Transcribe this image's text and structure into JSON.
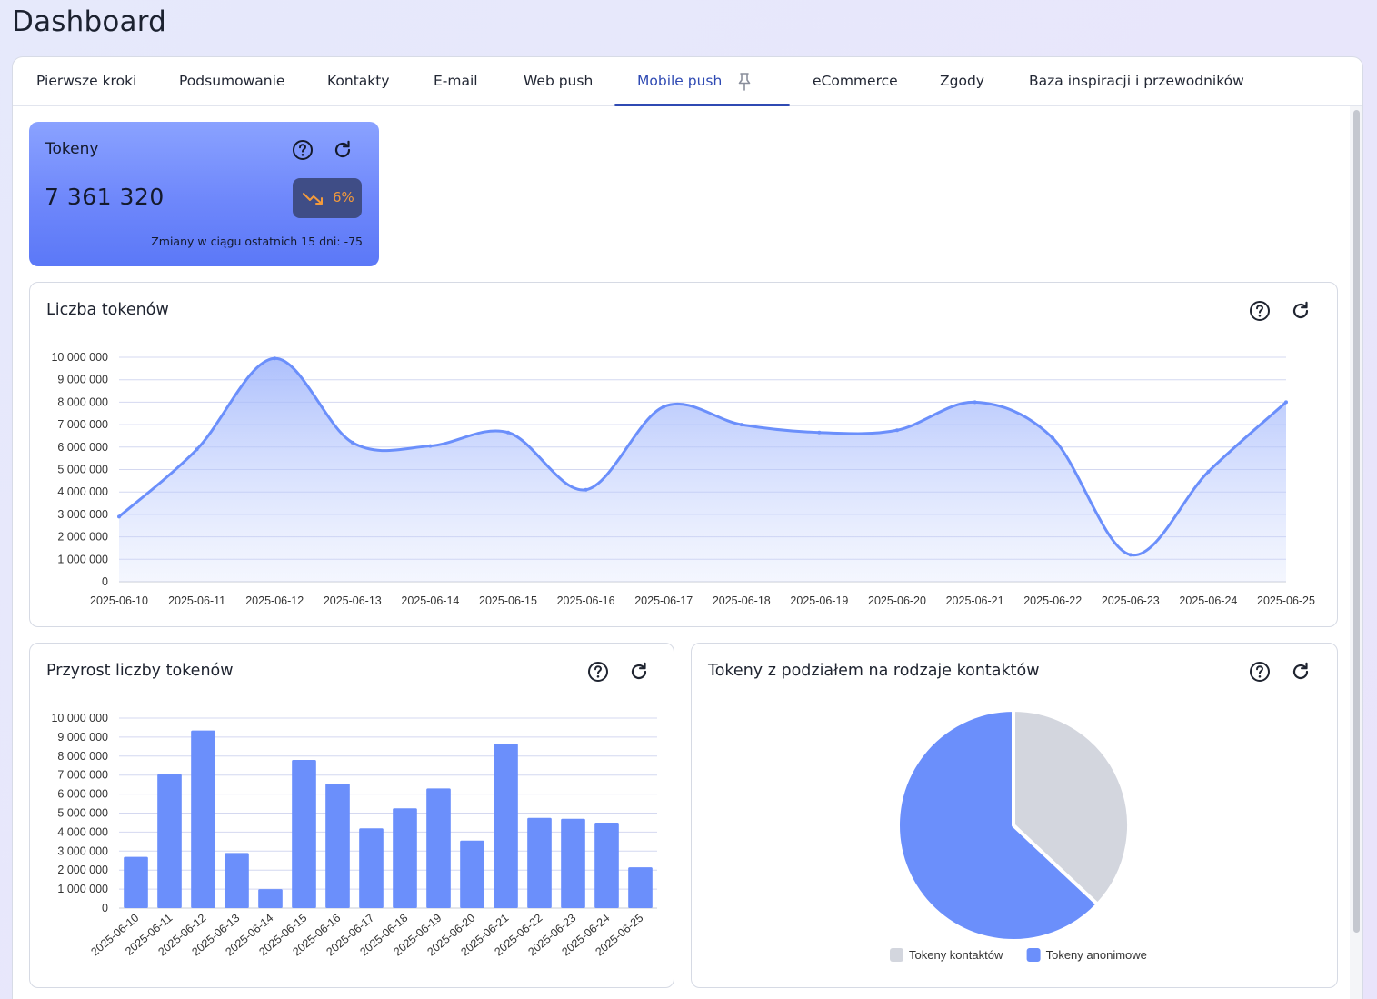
{
  "page": {
    "title": "Dashboard"
  },
  "tabs": [
    {
      "label": "Pierwsze kroki",
      "active": false
    },
    {
      "label": "Podsumowanie",
      "active": false
    },
    {
      "label": "Kontakty",
      "active": false
    },
    {
      "label": "E-mail",
      "active": false
    },
    {
      "label": "Web push",
      "active": false
    },
    {
      "label": "Mobile push",
      "active": true
    },
    {
      "label": "eCommerce",
      "active": false
    },
    {
      "label": "Zgody",
      "active": false
    },
    {
      "label": "Baza inspiracji i przewodników",
      "active": false
    }
  ],
  "kpi": {
    "title": "Tokeny",
    "value": "7 361 320",
    "change": "6%",
    "trend": "down",
    "note": "Zmiany w ciągu ostatnich 15 dni: -75"
  },
  "icons": {
    "help": "help-icon",
    "refresh": "refresh-icon",
    "pin": "pin-icon",
    "trend": "trending-down-icon"
  },
  "colors": {
    "accent": "#2f4ab3",
    "series": "#6b8ffb",
    "contacts": "#d3d6de",
    "trend": "#f29a3c"
  },
  "line_panel": {
    "title": "Liczba tokenów"
  },
  "bar_panel": {
    "title": "Przyrost liczby tokenów"
  },
  "pie_panel": {
    "title": "Tokeny z podziałem na rodzaje kontaktów"
  },
  "chart_data": [
    {
      "type": "area",
      "title": "Liczba tokenów",
      "x": [
        "2025-06-10",
        "2025-06-11",
        "2025-06-12",
        "2025-06-13",
        "2025-06-14",
        "2025-06-15",
        "2025-06-16",
        "2025-06-17",
        "2025-06-18",
        "2025-06-19",
        "2025-06-20",
        "2025-06-21",
        "2025-06-22",
        "2025-06-23",
        "2025-06-24",
        "2025-06-25"
      ],
      "values": [
        2900000,
        5900000,
        9950000,
        6200000,
        6050000,
        6650000,
        4100000,
        7800000,
        7000000,
        6650000,
        6750000,
        8000000,
        6400000,
        1200000,
        4900000,
        8000000
      ],
      "yticks": [
        "0",
        "1 000 000",
        "2 000 000",
        "3 000 000",
        "4 000 000",
        "5 000 000",
        "6 000 000",
        "7 000 000",
        "8 000 000",
        "9 000 000",
        "10 000 000"
      ],
      "ylim": [
        0,
        10000000
      ],
      "grid": true
    },
    {
      "type": "bar",
      "title": "Przyrost liczby tokenów",
      "categories": [
        "2025-06-10",
        "2025-06-11",
        "2025-06-12",
        "2025-06-13",
        "2025-06-14",
        "2025-06-15",
        "2025-06-16",
        "2025-06-17",
        "2025-06-18",
        "2025-06-19",
        "2025-06-20",
        "2025-06-21",
        "2025-06-22",
        "2025-06-23",
        "2025-06-24",
        "2025-06-25"
      ],
      "values": [
        2700000,
        7050000,
        9350000,
        2900000,
        1000000,
        7800000,
        6550000,
        4200000,
        5250000,
        6300000,
        3550000,
        8650000,
        4750000,
        4700000,
        4500000,
        2150000
      ],
      "yticks": [
        "0",
        "1 000 000",
        "2 000 000",
        "3 000 000",
        "4 000 000",
        "5 000 000",
        "6 000 000",
        "7 000 000",
        "8 000 000",
        "9 000 000",
        "10 000 000"
      ],
      "ylim": [
        0,
        10000000
      ],
      "grid": true
    },
    {
      "type": "pie",
      "title": "Tokeny z podziałem na rodzaje kontaktów",
      "labels": [
        "Tokeny kontaktów",
        "Tokeny anonimowe"
      ],
      "values": [
        37,
        63
      ],
      "legend": "bottom"
    }
  ]
}
